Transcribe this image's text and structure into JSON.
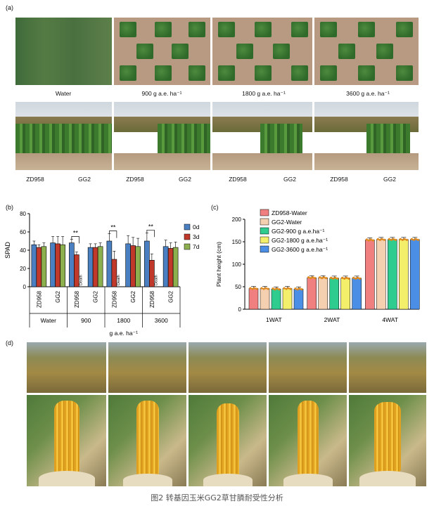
{
  "panel_labels": {
    "a": "(a)",
    "b": "(b)",
    "c": "(c)",
    "d": "(d)"
  },
  "panel_a": {
    "aerial_captions": [
      "Water",
      "900 g a.e. ha⁻¹",
      "1800 g a.e. ha⁻¹",
      "3600 g a.e. ha⁻¹"
    ],
    "field_captions": [
      {
        "left": "ZD958",
        "right": "GG2"
      },
      {
        "left": "ZD958",
        "right": "GG2"
      },
      {
        "left": "ZD958",
        "right": "GG2"
      },
      {
        "left": "ZD958",
        "right": "GG2"
      }
    ]
  },
  "chart_data": [
    {
      "type": "bar",
      "panel": "b",
      "ylabel": "SPAD",
      "ylim": [
        0,
        80
      ],
      "yticks": [
        0,
        20,
        40,
        60,
        80
      ],
      "xlabel": "g a.e. ha⁻¹",
      "categories": [
        "ZD958",
        "GG2",
        "ZD958",
        "GG2",
        "ZD958",
        "GG2",
        "ZD958",
        "GG2"
      ],
      "groups": [
        "Water",
        "900",
        "1800",
        "3600"
      ],
      "series": [
        {
          "name": "0d",
          "color": "#4a7fc1",
          "values": [
            46,
            48,
            48,
            43,
            50,
            47,
            50,
            44
          ],
          "errors": [
            4,
            7,
            4,
            4,
            8,
            9,
            9,
            7
          ]
        },
        {
          "name": "3d",
          "color": "#c0392b",
          "values": [
            43,
            47,
            35,
            43,
            30,
            45,
            29,
            42
          ],
          "errors": [
            3,
            8,
            3,
            4,
            9,
            9,
            7,
            6
          ]
        },
        {
          "name": "7d",
          "color": "#8db04f",
          "values": [
            44,
            46,
            null,
            44,
            null,
            44,
            null,
            43
          ],
          "errors": [
            4,
            9,
            0,
            4,
            0,
            9,
            0,
            6
          ]
        }
      ],
      "annotations": {
        "significance": "**",
        "death_label": "Death",
        "significance_groups": [
          "900",
          "1800",
          "3600"
        ]
      }
    },
    {
      "type": "bar",
      "panel": "c",
      "ylabel": "Plant height (cm)",
      "ylim": [
        0,
        200
      ],
      "yticks": [
        0,
        50,
        100,
        150,
        200
      ],
      "categories": [
        "1WAT",
        "2WAT",
        "4WAT"
      ],
      "series": [
        {
          "name": "ZD958-Water",
          "color": "#f08080",
          "values": [
            46,
            70,
            154
          ]
        },
        {
          "name": "GG2-Water",
          "color": "#f5d0b0",
          "values": [
            46,
            70,
            155
          ]
        },
        {
          "name": "GG2-900 g a.e.ha⁻¹",
          "color": "#2ecc8f",
          "values": [
            45,
            69,
            155
          ]
        },
        {
          "name": "GG2-1800 g a.e.ha⁻¹",
          "color": "#f4ef6b",
          "values": [
            46,
            69,
            155
          ]
        },
        {
          "name": "GG2-3600 g a.e.ha⁻¹",
          "color": "#4a8ee6",
          "values": [
            45,
            69,
            155
          ]
        }
      ]
    }
  ],
  "figure_caption": "图2 转基因玉米GG2草甘膦耐受性分析"
}
